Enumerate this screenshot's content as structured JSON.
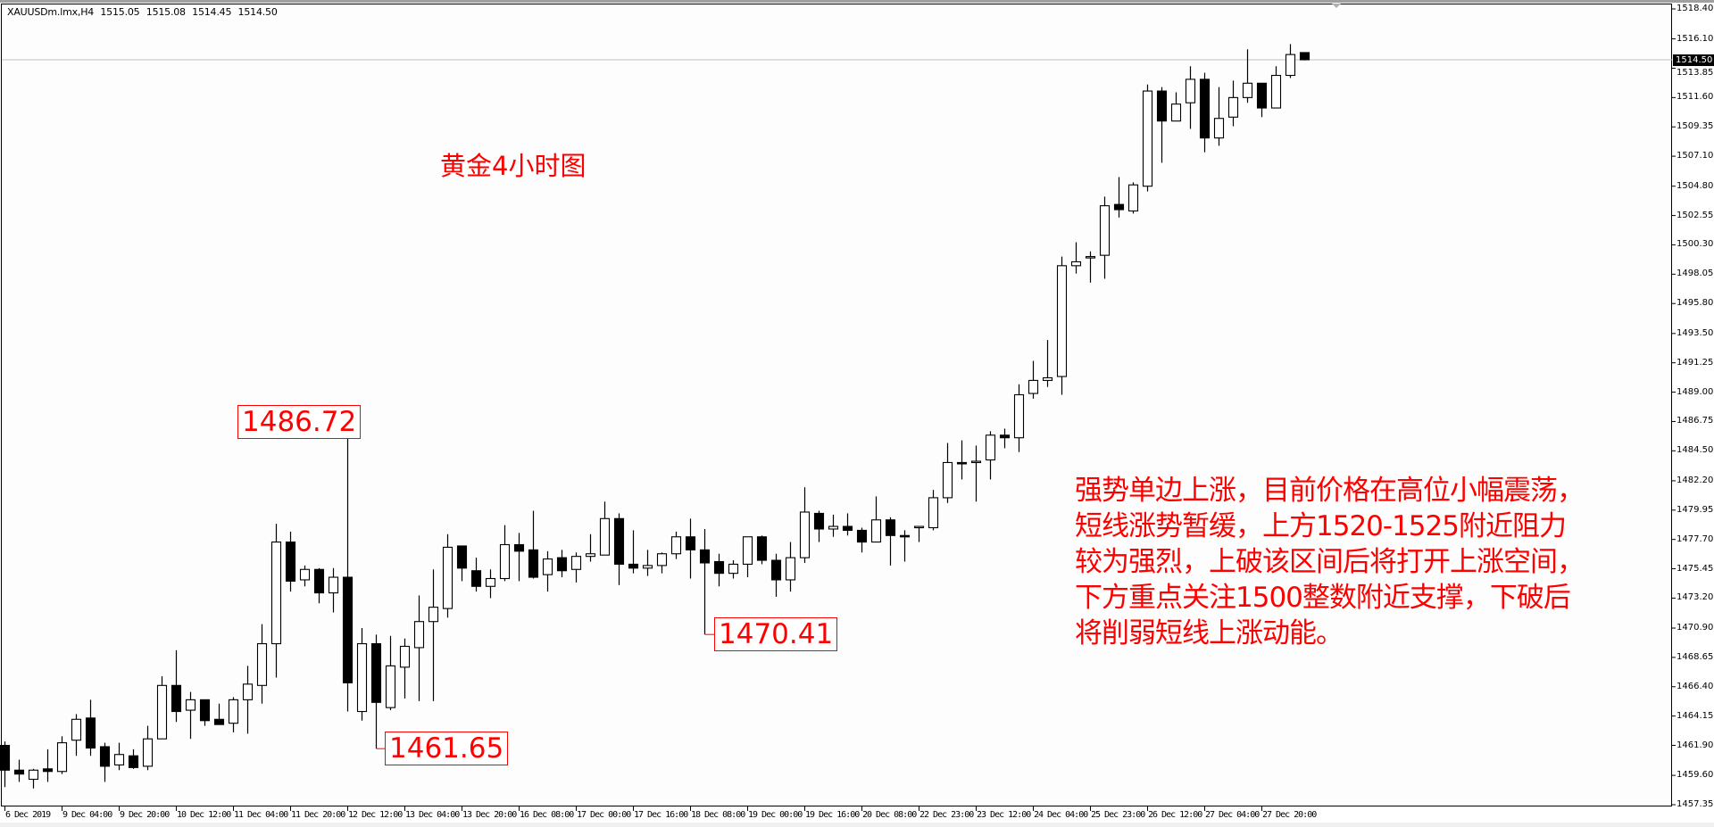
{
  "header": {
    "symbol": "XAUUSDm.lmx,H4",
    "open": "1515.05",
    "high": "1515.08",
    "low": "1514.45",
    "close": "1514.50"
  },
  "annotations": {
    "title": "黄金4小时图",
    "analysis_lines": [
      "强势单边上涨，目前价格在高位小幅震荡，",
      "短线涨势暂缓，上方1520-1525附近阻力",
      "较为强烈，上破该区间后将打开上涨空间，",
      "下方重点关注1500整数附近支撑，下破后",
      "将削弱短线上涨动能。"
    ],
    "price_labels": [
      {
        "text": "1486.72",
        "candle": 24,
        "price": 1486.72
      },
      {
        "text": "1461.65",
        "candle": 26,
        "price": 1461.65
      },
      {
        "text": "1470.41",
        "candle": 49,
        "price": 1470.41
      }
    ]
  },
  "colors": {
    "bull_body": "#ffffff",
    "bear_body": "#000000",
    "outline": "#000000",
    "annotation": "#ff0000",
    "current_price_line": "#c0c0c0"
  },
  "chart_data": {
    "type": "candlestick",
    "symbol": "XAUUSDm.lmx",
    "timeframe": "H4",
    "ylim": [
      1457.35,
      1518.4
    ],
    "grid": false,
    "current_price": "1514.50",
    "y_ticks": [
      "1518.40",
      "1516.10",
      "1513.85",
      "1511.60",
      "1509.35",
      "1507.10",
      "1504.80",
      "1502.55",
      "1500.30",
      "1498.05",
      "1495.80",
      "1493.50",
      "1491.25",
      "1489.00",
      "1486.75",
      "1484.50",
      "1482.20",
      "1479.95",
      "1477.70",
      "1475.45",
      "1473.20",
      "1470.90",
      "1468.65",
      "1466.40",
      "1464.15",
      "1461.90",
      "1459.60",
      "1457.35"
    ],
    "x_ticks": [
      "6 Dec 2019",
      "9 Dec 04:00",
      "9 Dec 20:00",
      "10 Dec 12:00",
      "11 Dec 04:00",
      "11 Dec 20:00",
      "12 Dec 12:00",
      "13 Dec 04:00",
      "13 Dec 20:00",
      "16 Dec 08:00",
      "17 Dec 00:00",
      "17 Dec 16:00",
      "18 Dec 08:00",
      "19 Dec 00:00",
      "19 Dec 16:00",
      "20 Dec 08:00",
      "22 Dec 23:00",
      "23 Dec 12:00",
      "24 Dec 04:00",
      "25 Dec 23:00",
      "26 Dec 12:00",
      "27 Dec 04:00",
      "27 Dec 20:00"
    ],
    "x_tick_every_n_candles": 4,
    "ohlc_fields": [
      "open",
      "high",
      "low",
      "close"
    ],
    "candles": [
      [
        1461.9,
        1462.2,
        1458.7,
        1460.0
      ],
      [
        1460.0,
        1460.8,
        1459.1,
        1459.7
      ],
      [
        1459.3,
        1460.1,
        1458.6,
        1460.0
      ],
      [
        1460.1,
        1461.6,
        1459.1,
        1459.9
      ],
      [
        1459.9,
        1462.6,
        1459.7,
        1462.1
      ],
      [
        1462.3,
        1464.3,
        1461.1,
        1463.9
      ],
      [
        1464.0,
        1465.4,
        1461.1,
        1461.7
      ],
      [
        1461.8,
        1462.1,
        1459.1,
        1460.3
      ],
      [
        1460.4,
        1462.1,
        1460.0,
        1461.2
      ],
      [
        1461.1,
        1461.6,
        1460.1,
        1460.2
      ],
      [
        1460.3,
        1463.4,
        1460.0,
        1462.4
      ],
      [
        1462.4,
        1467.2,
        1462.4,
        1466.5
      ],
      [
        1466.5,
        1469.2,
        1463.7,
        1464.5
      ],
      [
        1464.6,
        1466.0,
        1462.4,
        1465.4
      ],
      [
        1465.4,
        1465.4,
        1463.4,
        1463.8
      ],
      [
        1463.9,
        1465.1,
        1463.5,
        1463.5
      ],
      [
        1463.6,
        1465.6,
        1462.9,
        1465.4
      ],
      [
        1465.4,
        1468.0,
        1462.8,
        1466.6
      ],
      [
        1466.5,
        1471.2,
        1465.1,
        1469.7
      ],
      [
        1469.7,
        1478.9,
        1467.1,
        1477.5
      ],
      [
        1477.5,
        1478.3,
        1473.7,
        1474.5
      ],
      [
        1474.6,
        1475.7,
        1474.1,
        1475.4
      ],
      [
        1475.4,
        1475.5,
        1472.8,
        1473.6
      ],
      [
        1473.6,
        1475.5,
        1472.1,
        1474.8
      ],
      [
        1474.8,
        1486.72,
        1464.5,
        1466.7
      ],
      [
        1464.5,
        1470.9,
        1463.8,
        1469.7
      ],
      [
        1469.7,
        1470.4,
        1461.65,
        1465.2
      ],
      [
        1464.8,
        1470.3,
        1464.6,
        1468.0
      ],
      [
        1467.9,
        1470.1,
        1465.5,
        1469.5
      ],
      [
        1469.4,
        1473.4,
        1465.3,
        1471.4
      ],
      [
        1471.4,
        1475.4,
        1465.3,
        1472.5
      ],
      [
        1472.4,
        1478.1,
        1471.7,
        1477.1
      ],
      [
        1477.2,
        1477.2,
        1474.5,
        1475.5
      ],
      [
        1475.3,
        1476.3,
        1473.7,
        1474.1
      ],
      [
        1474.1,
        1475.4,
        1473.2,
        1474.7
      ],
      [
        1474.7,
        1478.8,
        1474.5,
        1477.3
      ],
      [
        1477.3,
        1478.2,
        1474.5,
        1476.8
      ],
      [
        1476.9,
        1479.9,
        1474.7,
        1474.8
      ],
      [
        1475.0,
        1476.8,
        1473.7,
        1476.2
      ],
      [
        1476.3,
        1476.9,
        1474.8,
        1475.3
      ],
      [
        1475.4,
        1476.7,
        1474.4,
        1476.4
      ],
      [
        1476.4,
        1478.1,
        1476.0,
        1476.6
      ],
      [
        1476.5,
        1480.6,
        1476.5,
        1479.3
      ],
      [
        1479.3,
        1479.7,
        1474.2,
        1475.8
      ],
      [
        1475.8,
        1478.4,
        1475.1,
        1475.5
      ],
      [
        1475.5,
        1476.9,
        1474.9,
        1475.7
      ],
      [
        1475.7,
        1476.7,
        1475.1,
        1476.6
      ],
      [
        1476.6,
        1478.3,
        1476.2,
        1477.9
      ],
      [
        1477.9,
        1479.3,
        1474.7,
        1476.9
      ],
      [
        1476.9,
        1478.5,
        1470.41,
        1475.9
      ],
      [
        1476.0,
        1476.6,
        1474.1,
        1475.1
      ],
      [
        1475.1,
        1476.1,
        1474.7,
        1475.8
      ],
      [
        1475.8,
        1477.9,
        1474.8,
        1477.9
      ],
      [
        1477.9,
        1478.0,
        1475.8,
        1476.1
      ],
      [
        1476.1,
        1476.6,
        1473.3,
        1474.6
      ],
      [
        1474.6,
        1477.5,
        1473.7,
        1476.3
      ],
      [
        1476.3,
        1481.7,
        1475.9,
        1479.8
      ],
      [
        1479.7,
        1479.9,
        1477.5,
        1478.5
      ],
      [
        1478.5,
        1479.6,
        1477.9,
        1478.7
      ],
      [
        1478.7,
        1479.7,
        1478.0,
        1478.4
      ],
      [
        1478.4,
        1478.6,
        1476.7,
        1477.5
      ],
      [
        1477.5,
        1481.0,
        1477.5,
        1479.2
      ],
      [
        1479.2,
        1479.4,
        1475.7,
        1478.0
      ],
      [
        1478.0,
        1478.4,
        1476.0,
        1477.9
      ],
      [
        1478.6,
        1478.7,
        1477.5,
        1478.7
      ],
      [
        1478.6,
        1481.5,
        1478.4,
        1480.9
      ],
      [
        1480.9,
        1485.1,
        1480.5,
        1483.6
      ],
      [
        1483.6,
        1485.3,
        1482.3,
        1483.5
      ],
      [
        1483.6,
        1484.9,
        1480.6,
        1483.7
      ],
      [
        1483.8,
        1486.0,
        1482.3,
        1485.7
      ],
      [
        1485.7,
        1486.2,
        1484.7,
        1485.5
      ],
      [
        1485.5,
        1489.6,
        1484.4,
        1488.8
      ],
      [
        1488.9,
        1491.4,
        1488.5,
        1489.9
      ],
      [
        1489.9,
        1493.0,
        1489.4,
        1490.1
      ],
      [
        1490.2,
        1499.4,
        1488.8,
        1498.7
      ],
      [
        1498.7,
        1500.5,
        1498.1,
        1499.0
      ],
      [
        1499.3,
        1499.8,
        1497.4,
        1499.4
      ],
      [
        1499.5,
        1504.0,
        1497.7,
        1503.3
      ],
      [
        1503.4,
        1505.5,
        1502.4,
        1503.0
      ],
      [
        1502.9,
        1505.1,
        1502.7,
        1504.9
      ],
      [
        1504.8,
        1512.6,
        1504.4,
        1512.1
      ],
      [
        1512.1,
        1512.4,
        1506.6,
        1509.8
      ],
      [
        1509.8,
        1512.0,
        1509.8,
        1511.1
      ],
      [
        1511.2,
        1514.0,
        1509.2,
        1513.0
      ],
      [
        1513.0,
        1513.5,
        1507.4,
        1508.5
      ],
      [
        1508.5,
        1512.4,
        1507.9,
        1510.0
      ],
      [
        1510.1,
        1512.9,
        1509.4,
        1511.6
      ],
      [
        1511.6,
        1515.3,
        1511.2,
        1512.7
      ],
      [
        1512.7,
        1512.7,
        1510.1,
        1510.8
      ],
      [
        1510.8,
        1514.0,
        1511.0,
        1513.3
      ],
      [
        1513.3,
        1515.7,
        1513.1,
        1514.9
      ],
      [
        1515.05,
        1515.08,
        1514.45,
        1514.5
      ]
    ]
  }
}
